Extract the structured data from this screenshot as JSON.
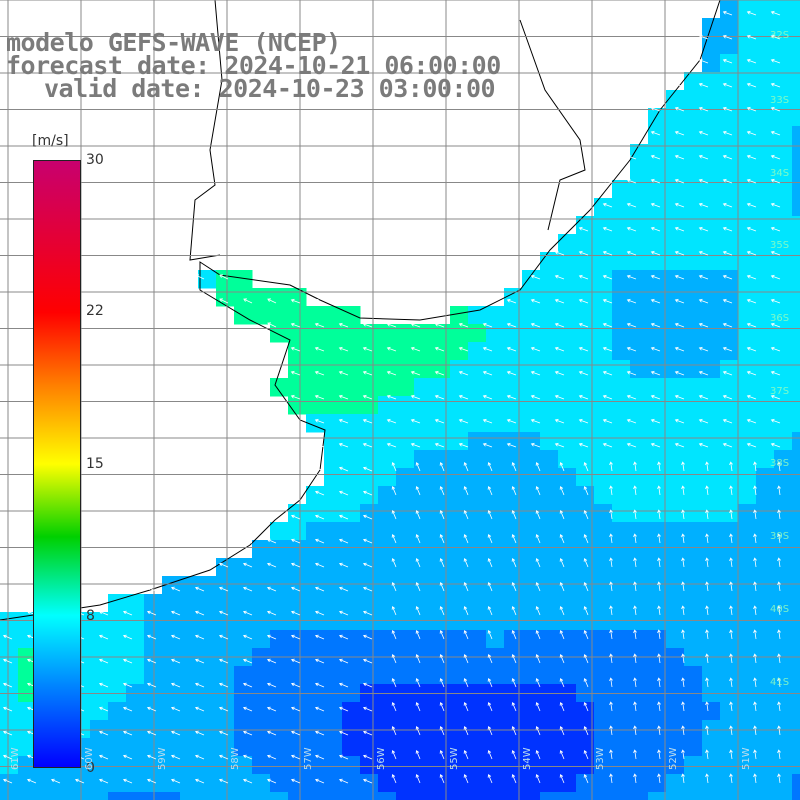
{
  "title": {
    "line1": "modelo GEFS-WAVE (NCEP)",
    "line2": "forecast date: 2024-10-21 06:00:00",
    "line3": "valid date: 2024-10-23 03:00:00"
  },
  "colorbar": {
    "unit": "[m/s]",
    "ticks": [
      "30",
      "22",
      "15",
      "8",
      "0"
    ],
    "colors": [
      "#c8006e",
      "#ff0000",
      "#ff7f00",
      "#ffff00",
      "#00d000",
      "#00ffff",
      "#0080ff",
      "#0000ff"
    ]
  },
  "map": {
    "lat_labels": [
      "32S",
      "33S",
      "34S",
      "35S",
      "36S",
      "37S",
      "38S",
      "39S",
      "40S",
      "41S"
    ],
    "lon_labels": [
      "61W",
      "60W",
      "59W",
      "58W",
      "57W",
      "56W",
      "55W",
      "54W",
      "53W",
      "52W",
      "51W"
    ],
    "land_color": "#ffffff",
    "ocean_palette": [
      "#0033ff",
      "#0077ff",
      "#00b0ff",
      "#00e5ff",
      "#00ff9a",
      "#33ee44"
    ],
    "vector_color": "#ffffff"
  }
}
